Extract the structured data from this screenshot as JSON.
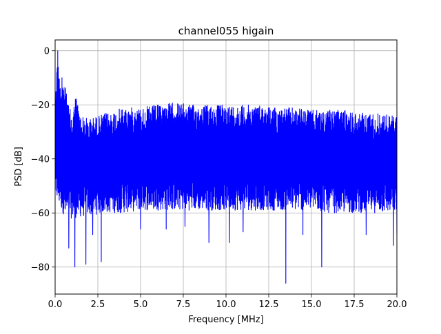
{
  "chart_data": {
    "type": "line",
    "title": "channel055 higain",
    "xlabel": "Frequency [MHz]",
    "ylabel": "PSD [dB]",
    "xlim": [
      0,
      20
    ],
    "ylim": [
      -90,
      4
    ],
    "xticks": [
      0,
      2.5,
      5,
      7.5,
      10,
      12.5,
      15,
      17.5,
      20
    ],
    "xtick_labels": [
      "0.0",
      "2.5",
      "5.0",
      "7.5",
      "10.0",
      "12.5",
      "15.0",
      "17.5",
      "20.0"
    ],
    "yticks": [
      -80,
      -60,
      -40,
      -20,
      0
    ],
    "ytick_labels": [
      "−80",
      "−60",
      "−40",
      "−20",
      "0"
    ],
    "grid": true,
    "series": [
      {
        "color": "#0000ff",
        "note_envelope": "dense noise spectrum; envelope points in data units",
        "upper_envelope": [
          [
            0.0,
            -18
          ],
          [
            0.1,
            -8
          ],
          [
            0.15,
            0
          ],
          [
            0.3,
            -14
          ],
          [
            0.4,
            -10
          ],
          [
            0.6,
            -14
          ],
          [
            0.8,
            -20
          ],
          [
            1.0,
            -24
          ],
          [
            1.2,
            -16
          ],
          [
            1.5,
            -24
          ],
          [
            2.0,
            -25
          ],
          [
            2.5,
            -24
          ],
          [
            3.0,
            -23
          ],
          [
            4.0,
            -21
          ],
          [
            5.0,
            -21
          ],
          [
            6.0,
            -20
          ],
          [
            7.0,
            -19
          ],
          [
            8.0,
            -20
          ],
          [
            9.0,
            -20
          ],
          [
            10.0,
            -20
          ],
          [
            11.0,
            -20
          ],
          [
            12.0,
            -20
          ],
          [
            13.0,
            -21
          ],
          [
            14.0,
            -21
          ],
          [
            15.0,
            -22
          ],
          [
            16.0,
            -22
          ],
          [
            17.0,
            -22
          ],
          [
            18.0,
            -23
          ],
          [
            19.0,
            -23
          ],
          [
            20.0,
            -24
          ]
        ],
        "lower_envelope": [
          [
            0.0,
            -55
          ],
          [
            0.3,
            -58
          ],
          [
            0.6,
            -62
          ],
          [
            1.0,
            -62
          ],
          [
            2.0,
            -61
          ],
          [
            3.0,
            -60
          ],
          [
            4.0,
            -60
          ],
          [
            5.0,
            -59
          ],
          [
            6.0,
            -59
          ],
          [
            7.0,
            -59
          ],
          [
            8.0,
            -59
          ],
          [
            9.0,
            -59
          ],
          [
            10.0,
            -59
          ],
          [
            11.0,
            -59
          ],
          [
            12.0,
            -59
          ],
          [
            13.0,
            -59
          ],
          [
            14.0,
            -59
          ],
          [
            15.0,
            -59
          ],
          [
            16.0,
            -60
          ],
          [
            17.0,
            -60
          ],
          [
            18.0,
            -60
          ],
          [
            19.0,
            -60
          ],
          [
            20.0,
            -60
          ]
        ],
        "dips": [
          [
            0.6,
            -83
          ],
          [
            0.8,
            -73
          ],
          [
            1.15,
            -80
          ],
          [
            1.8,
            -79
          ],
          [
            2.2,
            -68
          ],
          [
            2.7,
            -78
          ],
          [
            5.0,
            -66
          ],
          [
            6.5,
            -66
          ],
          [
            7.6,
            -65
          ],
          [
            9.0,
            -71
          ],
          [
            10.2,
            -71
          ],
          [
            11.0,
            -67
          ],
          [
            13.5,
            -86
          ],
          [
            14.5,
            -68
          ],
          [
            15.6,
            -80
          ],
          [
            18.2,
            -68
          ],
          [
            19.8,
            -72
          ],
          [
            20.0,
            -68
          ]
        ]
      }
    ]
  }
}
